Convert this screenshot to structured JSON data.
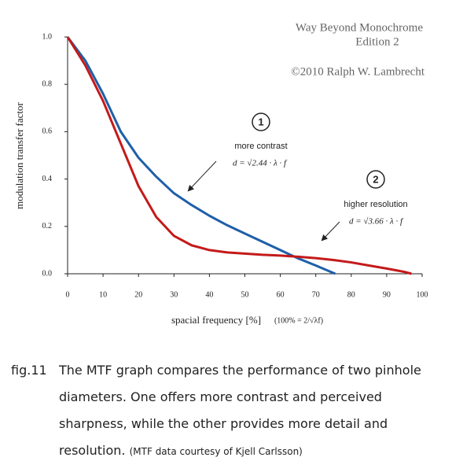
{
  "chart_data": {
    "type": "line",
    "watermark": [
      "Way Beyond Monochrome",
      "Edition 2",
      "©2010  Ralph W. Lambrecht"
    ],
    "xlabel": "spacial frequency [%]",
    "xlabel_note": "(100% = 2/√λf)",
    "ylabel": "modulation transfer factor",
    "xlim": [
      0,
      100
    ],
    "xticks": [
      0,
      10,
      20,
      30,
      40,
      50,
      60,
      70,
      80,
      90,
      100
    ],
    "ylim": [
      0,
      1
    ],
    "yticks": [
      {
        "value": 0,
        "label": "0.0"
      },
      0.2,
      0.4,
      0.6,
      0.8,
      {
        "value": 1,
        "label": "1.0"
      }
    ],
    "series": [
      {
        "color": "#1f5fa8",
        "x": [
          0,
          5,
          10,
          15,
          20,
          25,
          30,
          35,
          40,
          45,
          50,
          55,
          60,
          65,
          70,
          75.5
        ],
        "values": [
          1.0,
          0.9,
          0.76,
          0.6,
          0.49,
          0.41,
          0.34,
          0.29,
          0.245,
          0.205,
          0.17,
          0.135,
          0.1,
          0.065,
          0.035,
          0.0
        ]
      },
      {
        "color": "#c41a1a",
        "x": [
          0,
          5,
          10,
          15,
          20,
          25,
          30,
          35,
          40,
          45,
          50,
          55,
          60,
          65,
          70,
          75,
          80,
          85,
          90,
          95,
          97
        ],
        "values": [
          1.0,
          0.88,
          0.73,
          0.55,
          0.37,
          0.24,
          0.16,
          0.12,
          0.1,
          0.09,
          0.085,
          0.08,
          0.077,
          0.072,
          0.066,
          0.058,
          0.048,
          0.035,
          0.022,
          0.008,
          0.0
        ]
      }
    ],
    "annotations": [
      {
        "marker": "1",
        "text": "more contrast",
        "formula": "d = √2.44 · λ · f"
      },
      {
        "marker": "2",
        "text": "higher resolution",
        "formula": "d = √3.66 · λ · f"
      }
    ]
  },
  "caption": {
    "label": "fig.11",
    "text": "The MTF graph compares the performance of two pinhole diameters. One offers more contrast and perceived sharpness, while the other provides more detail and resolution.",
    "note": "(MTF data courtesy of Kjell Carlsson)"
  }
}
